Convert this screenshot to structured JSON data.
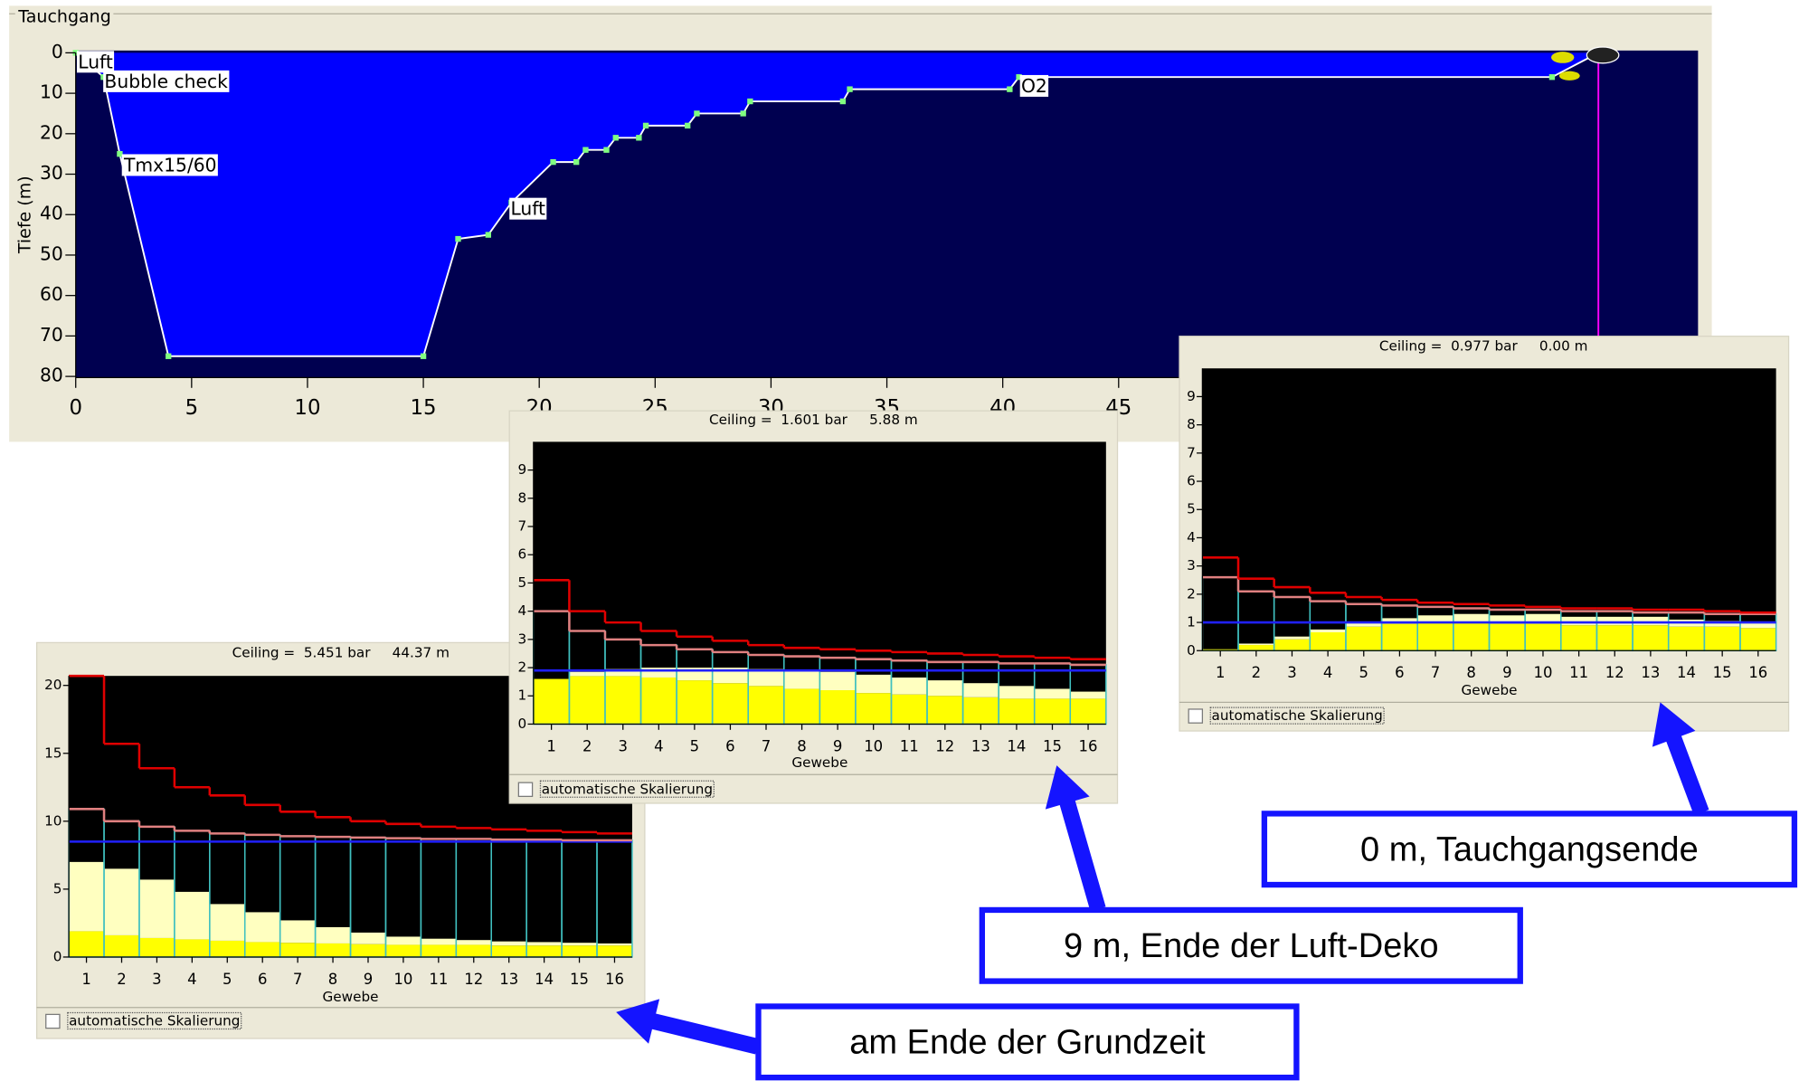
{
  "chart_data": [
    {
      "type": "area",
      "title": "Tauchgang",
      "ylabel": "Tiefe (m)",
      "x": [
        0,
        1.2,
        1.9,
        4,
        15,
        16.5,
        17.8,
        18.8,
        20.6,
        21.6,
        22,
        22.9,
        23.3,
        24.3,
        24.6,
        26.4,
        26.8,
        28.8,
        29.1,
        33.1,
        33.4,
        40.3,
        40.7,
        63.7,
        65.7
      ],
      "values": [
        0,
        6,
        25,
        75,
        75,
        46,
        45,
        37,
        27,
        27,
        24,
        24,
        21,
        21,
        18,
        18,
        15,
        15,
        12,
        12,
        9,
        9,
        6,
        6,
        0
      ],
      "color": "#ffffff",
      "fill": "#0000ff",
      "background": "#000050",
      "marker_color": "#80ff80",
      "annotations": [
        "Luft",
        "Bubble check",
        "Tmx15/60",
        "Luft",
        "O2"
      ],
      "cursor": {
        "x": 65.7,
        "color": "#ff00ff"
      },
      "xlim": [
        0,
        70
      ],
      "xticks": [
        0,
        5,
        10,
        15,
        20,
        25,
        30,
        35,
        40,
        45
      ],
      "ylim": [
        0,
        80
      ],
      "yticks": [
        0,
        10,
        20,
        30,
        40,
        50,
        60,
        70,
        80
      ],
      "y_inverted": true
    },
    {
      "type": "bar",
      "title": "Ceiling =  5.451 bar     44.37 m",
      "xlabel": "Gewebe",
      "checkbox_label": "automatische Skalierung",
      "categories": [
        "1",
        "2",
        "3",
        "4",
        "5",
        "6",
        "7",
        "8",
        "9",
        "10",
        "11",
        "12",
        "13",
        "14",
        "15",
        "16"
      ],
      "series": [
        {
          "color": "#ffff00",
          "values": [
            1.9,
            1.6,
            1.4,
            1.3,
            1.2,
            1.1,
            1.05,
            1.0,
            0.95,
            0.9,
            0.9,
            0.9,
            0.85,
            0.85,
            0.85,
            0.85
          ]
        },
        {
          "color": "#ffffc0",
          "values": [
            5.1,
            4.9,
            4.3,
            3.5,
            2.7,
            2.2,
            1.65,
            1.2,
            0.85,
            0.6,
            0.45,
            0.35,
            0.3,
            0.25,
            0.2,
            0.15
          ]
        },
        {
          "color": "#e08080",
          "style": "step",
          "outline_color": "#40c0c0",
          "values": [
            10.9,
            10.0,
            9.6,
            9.3,
            9.1,
            9.0,
            8.9,
            8.85,
            8.8,
            8.75,
            8.7,
            8.7,
            8.65,
            8.65,
            8.6,
            8.6
          ]
        },
        {
          "color": "#e00000",
          "style": "step",
          "values": [
            20.7,
            15.7,
            13.9,
            12.5,
            11.9,
            11.2,
            10.7,
            10.3,
            10.0,
            9.8,
            9.6,
            9.5,
            9.4,
            9.3,
            9.2,
            9.1
          ]
        }
      ],
      "reference_line": {
        "value": 8.5,
        "color": "#2020ff"
      },
      "ylim": [
        0,
        20.7
      ],
      "yticks": [
        0,
        5,
        10,
        15,
        20
      ]
    },
    {
      "type": "bar",
      "title": "Ceiling =  1.601 bar     5.88 m",
      "xlabel": "Gewebe",
      "checkbox_label": "automatische Skalierung",
      "categories": [
        "1",
        "2",
        "3",
        "4",
        "5",
        "6",
        "7",
        "8",
        "9",
        "10",
        "11",
        "12",
        "13",
        "14",
        "15",
        "16"
      ],
      "series": [
        {
          "color": "#ffff00",
          "values": [
            1.6,
            1.7,
            1.7,
            1.65,
            1.55,
            1.45,
            1.35,
            1.25,
            1.2,
            1.1,
            1.05,
            1.0,
            0.95,
            0.9,
            0.9,
            0.9
          ]
        },
        {
          "color": "#ffffc0",
          "values": [
            0,
            0.15,
            0.25,
            0.35,
            0.45,
            0.55,
            0.6,
            0.65,
            0.65,
            0.65,
            0.6,
            0.55,
            0.5,
            0.45,
            0.35,
            0.25
          ]
        },
        {
          "color": "#e08080",
          "style": "step",
          "outline_color": "#40c0c0",
          "values": [
            4.0,
            3.3,
            3.0,
            2.8,
            2.65,
            2.55,
            2.45,
            2.4,
            2.35,
            2.3,
            2.25,
            2.2,
            2.2,
            2.15,
            2.15,
            2.1
          ]
        },
        {
          "color": "#e00000",
          "style": "step",
          "values": [
            5.1,
            4.0,
            3.6,
            3.3,
            3.1,
            2.95,
            2.8,
            2.7,
            2.65,
            2.6,
            2.55,
            2.5,
            2.45,
            2.4,
            2.35,
            2.3
          ]
        }
      ],
      "reference_line": {
        "value": 1.9,
        "color": "#2020ff"
      },
      "ylim": [
        0,
        10
      ],
      "yticks": [
        0,
        1,
        2,
        3,
        4,
        5,
        6,
        7,
        8,
        9
      ]
    },
    {
      "type": "bar",
      "title": "Ceiling =  0.977 bar     0.00 m",
      "xlabel": "Gewebe",
      "checkbox_label": "automatische Skalierung",
      "categories": [
        "1",
        "2",
        "3",
        "4",
        "5",
        "6",
        "7",
        "8",
        "9",
        "10",
        "11",
        "12",
        "13",
        "14",
        "15",
        "16"
      ],
      "series": [
        {
          "color": "#ffff00",
          "values": [
            0.05,
            0.2,
            0.4,
            0.65,
            0.85,
            0.95,
            1.0,
            1.0,
            0.95,
            0.95,
            0.9,
            0.9,
            0.9,
            0.85,
            0.85,
            0.8
          ]
        },
        {
          "color": "#ffffc0",
          "values": [
            0,
            0.05,
            0.1,
            0.1,
            0.15,
            0.2,
            0.25,
            0.3,
            0.3,
            0.35,
            0.3,
            0.3,
            0.3,
            0.25,
            0.2,
            0.2
          ]
        },
        {
          "color": "#e08080",
          "style": "step",
          "outline_color": "#40c0c0",
          "values": [
            2.6,
            2.1,
            1.9,
            1.75,
            1.65,
            1.6,
            1.55,
            1.5,
            1.45,
            1.45,
            1.4,
            1.4,
            1.35,
            1.35,
            1.3,
            1.3
          ]
        },
        {
          "color": "#e00000",
          "style": "step",
          "values": [
            3.3,
            2.55,
            2.25,
            2.05,
            1.9,
            1.8,
            1.7,
            1.65,
            1.6,
            1.55,
            1.5,
            1.5,
            1.45,
            1.45,
            1.4,
            1.35
          ]
        }
      ],
      "reference_line": {
        "value": 1.0,
        "color": "#2020ff"
      },
      "ylim": [
        0,
        10
      ],
      "yticks": [
        0,
        1,
        2,
        3,
        4,
        5,
        6,
        7,
        8,
        9
      ]
    }
  ],
  "callouts": [
    "am Ende der Grundzeit",
    "9 m, Ende der Luft-Deko",
    "0 m, Tauchgangsende"
  ]
}
